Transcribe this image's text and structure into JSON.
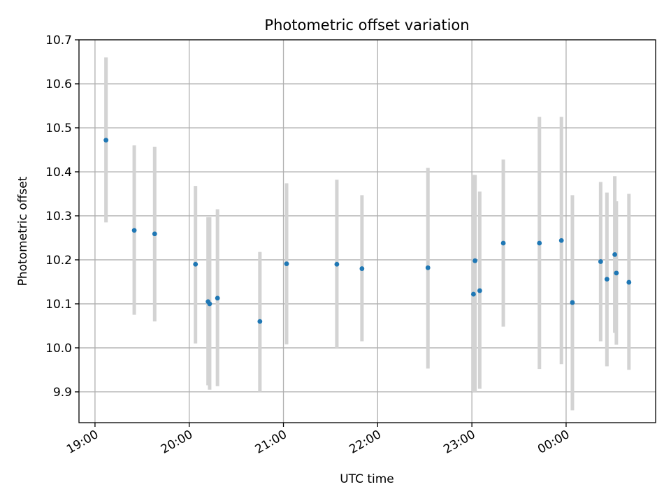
{
  "chart_data": {
    "type": "scatter",
    "title": "Photometric offset variation",
    "xlabel": "UTC time",
    "ylabel": "Photometric offset",
    "x_ticks": [
      "19:00",
      "20:00",
      "21:00",
      "22:00",
      "23:00",
      "00:00"
    ],
    "x_tick_hours": [
      19,
      20,
      21,
      22,
      23,
      24
    ],
    "xlim_hours": [
      18.83,
      24.95
    ],
    "ylim": [
      9.83,
      10.7
    ],
    "y_ticks": [
      "9.9",
      "10.0",
      "10.1",
      "10.2",
      "10.3",
      "10.4",
      "10.5",
      "10.6",
      "10.7"
    ],
    "y_tick_values": [
      9.9,
      10.0,
      10.1,
      10.2,
      10.3,
      10.4,
      10.5,
      10.6,
      10.7
    ],
    "grid": true,
    "colors": {
      "point": "#1f77b4",
      "errorbar": "#d3d3d3",
      "grid": "#b0b0b0"
    },
    "points": [
      {
        "t": "19:07",
        "y": 10.472,
        "lo": 10.285,
        "hi": 10.66
      },
      {
        "t": "19:25",
        "y": 10.267,
        "lo": 10.075,
        "hi": 10.46
      },
      {
        "t": "19:38",
        "y": 10.259,
        "lo": 10.06,
        "hi": 10.457
      },
      {
        "t": "20:04",
        "y": 10.19,
        "lo": 10.01,
        "hi": 10.368
      },
      {
        "t": "20:12",
        "y": 10.105,
        "lo": 9.915,
        "hi": 10.297
      },
      {
        "t": "20:13",
        "y": 10.1,
        "lo": 9.905,
        "hi": 10.297
      },
      {
        "t": "20:18",
        "y": 10.113,
        "lo": 9.913,
        "hi": 10.315
      },
      {
        "t": "20:45",
        "y": 10.06,
        "lo": 9.9,
        "hi": 10.218
      },
      {
        "t": "21:02",
        "y": 10.191,
        "lo": 10.008,
        "hi": 10.374
      },
      {
        "t": "21:34",
        "y": 10.19,
        "lo": 9.998,
        "hi": 10.382
      },
      {
        "t": "21:50",
        "y": 10.18,
        "lo": 10.015,
        "hi": 10.347
      },
      {
        "t": "22:32",
        "y": 10.182,
        "lo": 9.953,
        "hi": 10.409
      },
      {
        "t": "23:01",
        "y": 10.122,
        "lo": 9.9,
        "hi": 10.393
      },
      {
        "t": "23:02",
        "y": 10.198,
        "lo": 9.9,
        "hi": 10.393
      },
      {
        "t": "23:05",
        "y": 10.13,
        "lo": 9.907,
        "hi": 10.355
      },
      {
        "t": "23:20",
        "y": 10.238,
        "lo": 10.048,
        "hi": 10.428
      },
      {
        "t": "23:43",
        "y": 10.238,
        "lo": 9.952,
        "hi": 10.525
      },
      {
        "t": "23:57",
        "y": 10.244,
        "lo": 9.963,
        "hi": 10.525
      },
      {
        "t": "00:04",
        "y": 10.103,
        "lo": 9.858,
        "hi": 10.347
      },
      {
        "t": "00:22",
        "y": 10.196,
        "lo": 10.015,
        "hi": 10.377
      },
      {
        "t": "00:26",
        "y": 10.156,
        "lo": 9.958,
        "hi": 10.353
      },
      {
        "t": "00:31",
        "y": 10.212,
        "lo": 10.034,
        "hi": 10.39
      },
      {
        "t": "00:32",
        "y": 10.17,
        "lo": 10.007,
        "hi": 10.333
      },
      {
        "t": "00:40",
        "y": 10.149,
        "lo": 9.95,
        "hi": 10.35
      }
    ]
  }
}
